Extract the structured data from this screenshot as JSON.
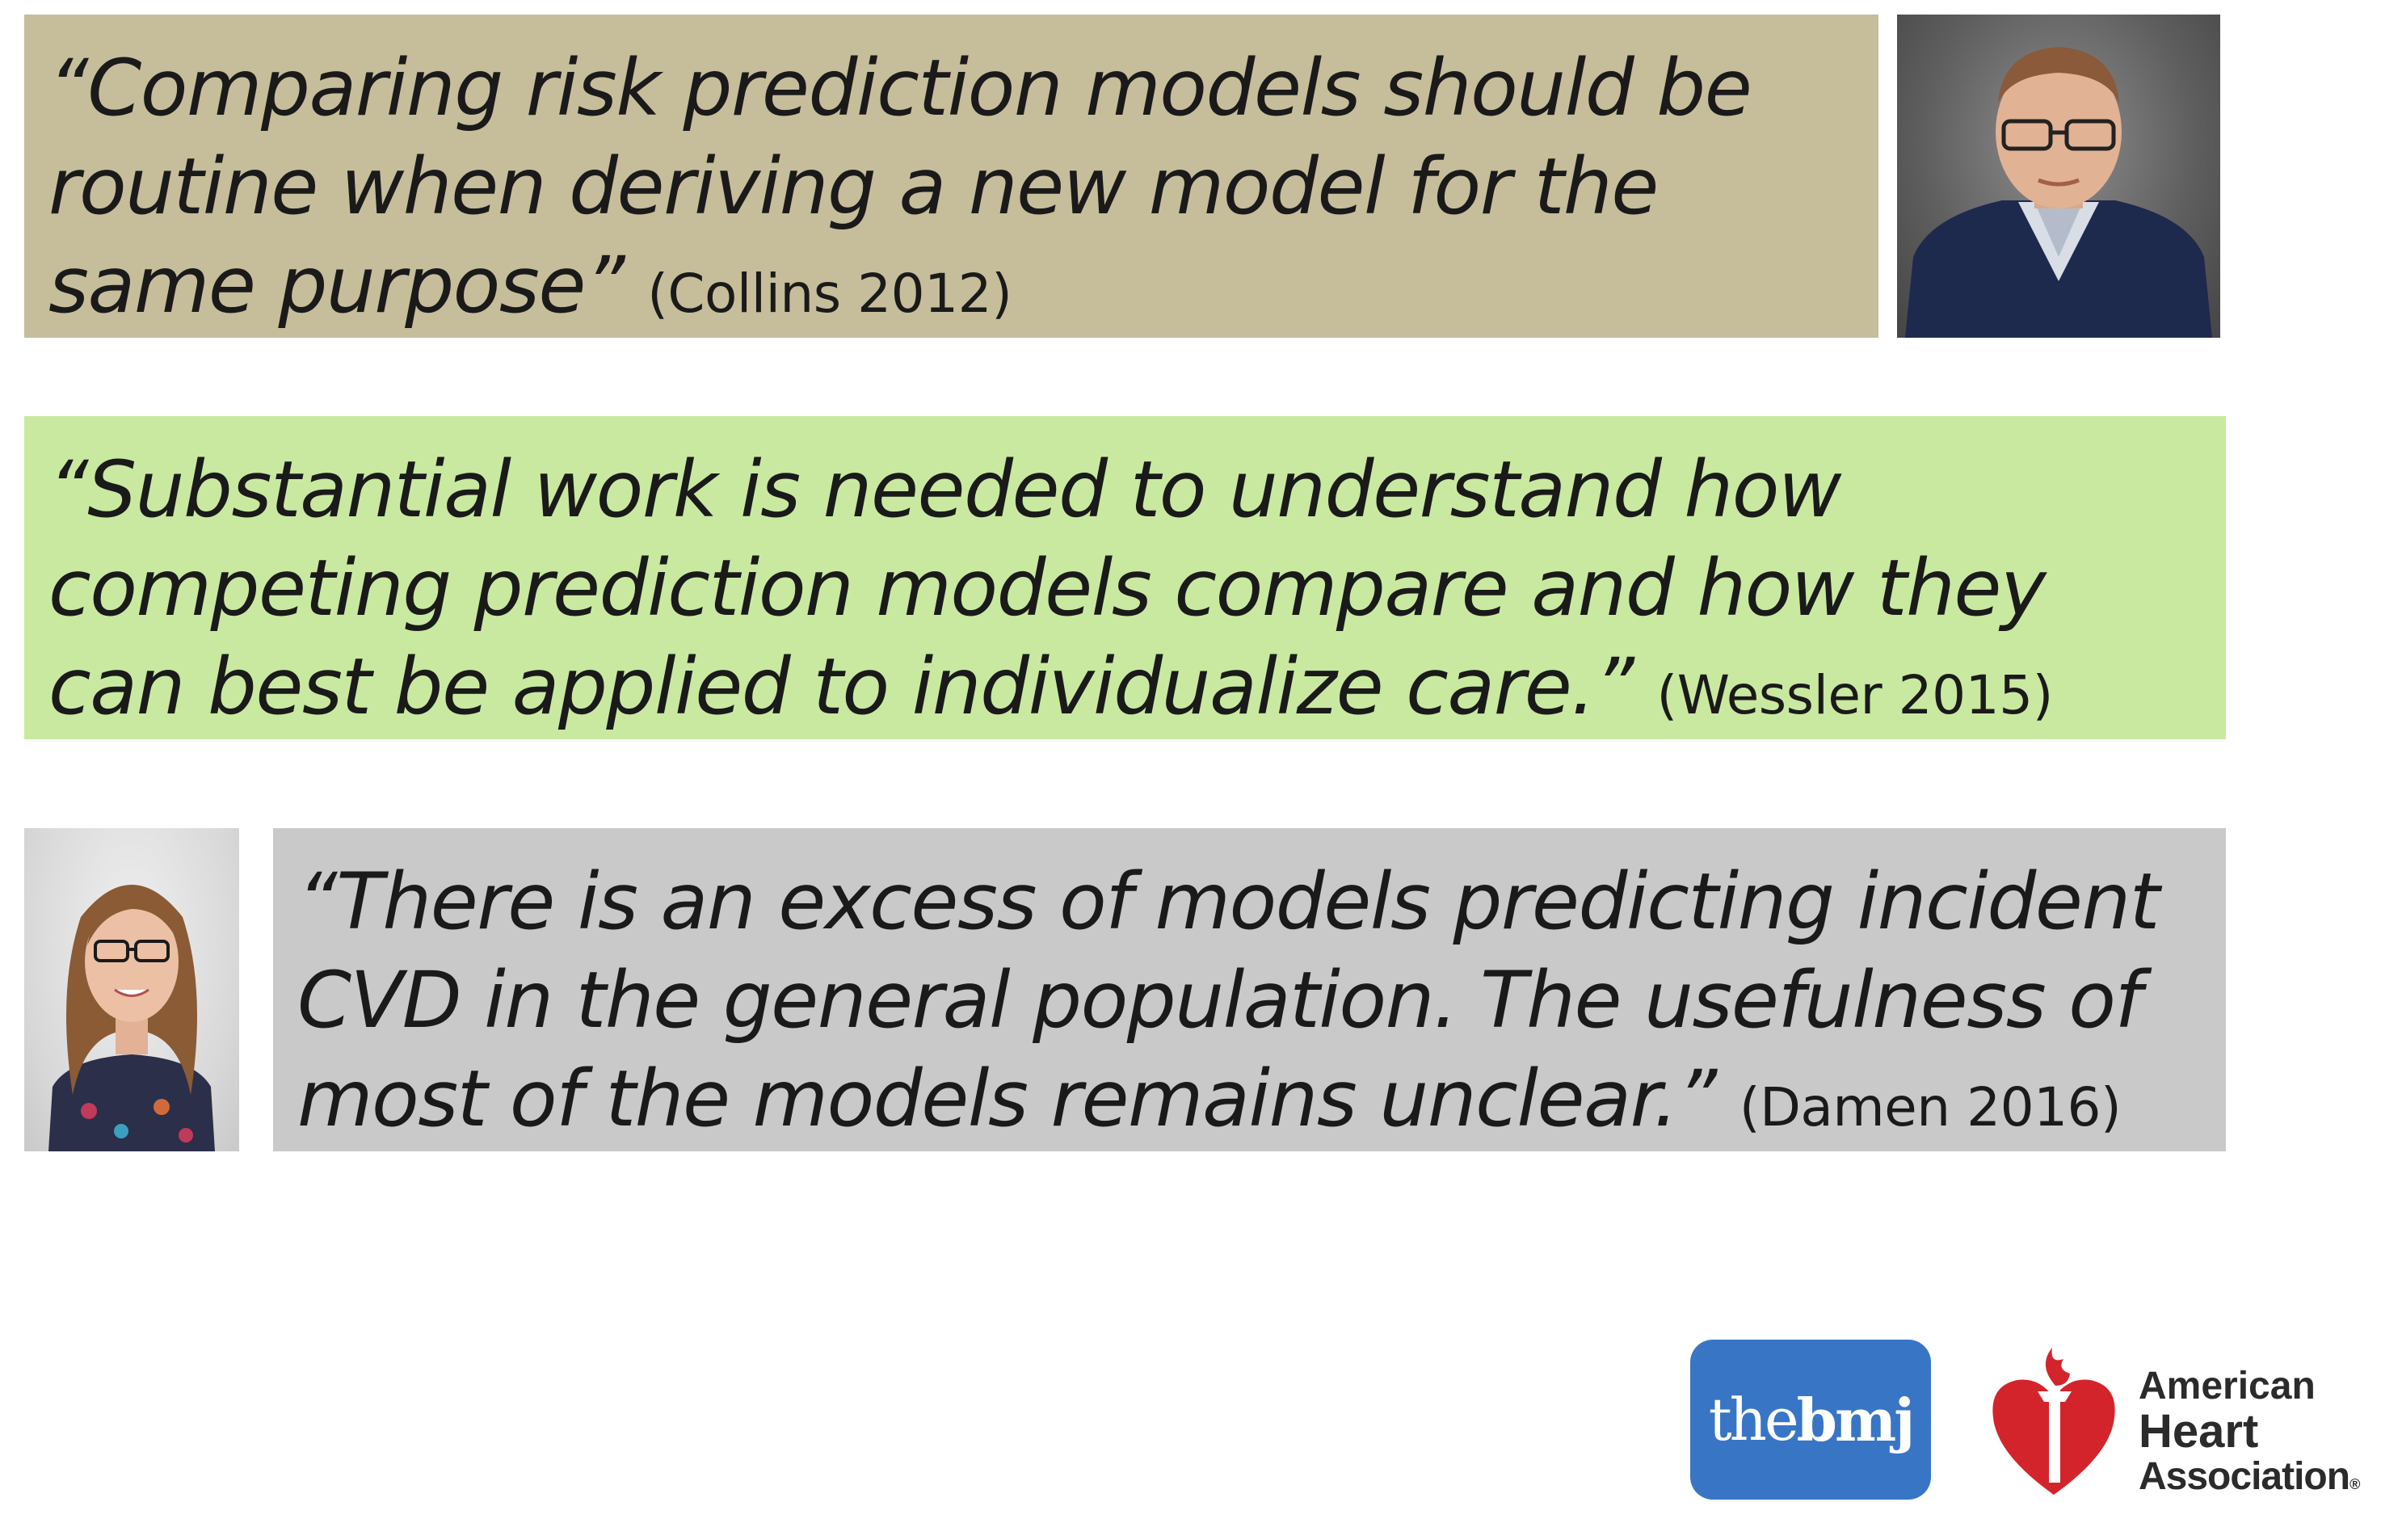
{
  "quotes": [
    {
      "text": "“Comparing risk prediction models should be routine when deriving a new model for the same purpose”",
      "citation": "(Collins 2012)",
      "background": "#c6bd9b"
    },
    {
      "text": "“Substantial work is needed to understand how competing prediction models compare and how they can best be applied to individualize care.”",
      "citation": "(Wessler 2015)",
      "background": "#c9e9a0"
    },
    {
      "text": "“There is an excess of models predicting incident CVD in the general population. The usefulness of most of the models remains unclear.”",
      "citation": "(Damen 2016)",
      "background": "#c9c9c9"
    }
  ],
  "logos": {
    "bmj": {
      "prefix": "the",
      "bold": "bmj",
      "background": "#3876c5"
    },
    "aha": {
      "line1": "American",
      "line2": "Heart",
      "line3": "Association",
      "reg": "®",
      "heart_color": "#d4242b"
    }
  },
  "icons": [
    "person-photo",
    "person-photo",
    "bmj-logo",
    "aha-heart-torch-icon"
  ]
}
